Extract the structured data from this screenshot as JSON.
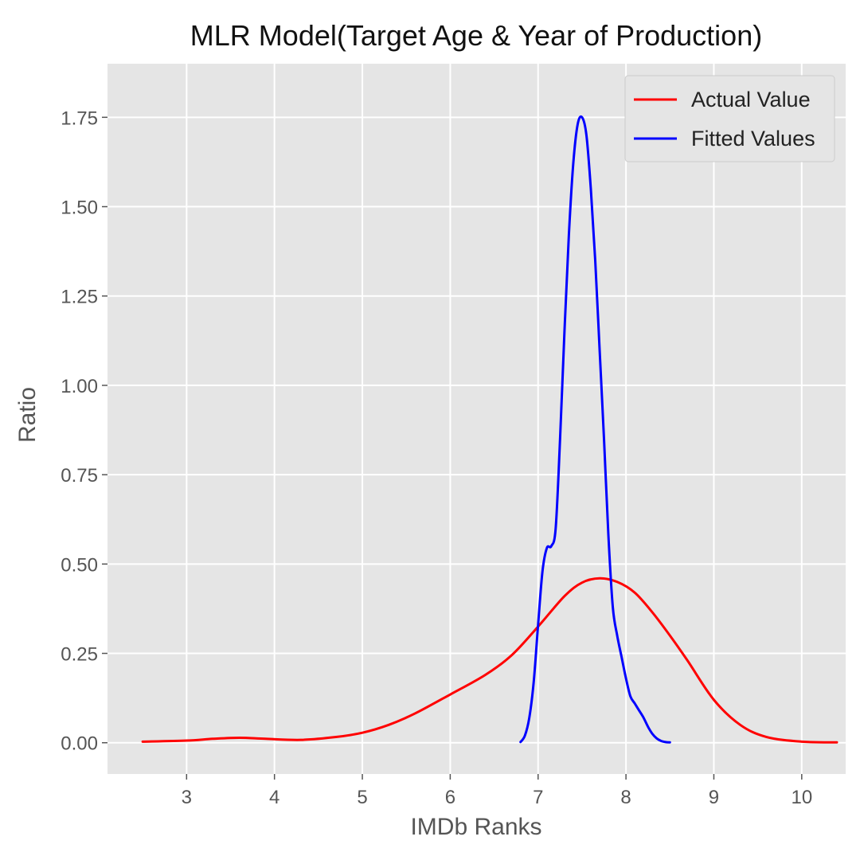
{
  "chart_data": {
    "type": "line",
    "title": "MLR Model(Target Age & Year of Production)",
    "xlabel": "IMDb Ranks",
    "ylabel": "Ratio",
    "xlim": [
      2.1,
      10.5
    ],
    "ylim": [
      -0.0875,
      1.9
    ],
    "xticks": [
      3,
      4,
      5,
      6,
      7,
      8,
      9,
      10
    ],
    "yticks": [
      0.0,
      0.25,
      0.5,
      0.75,
      1.0,
      1.25,
      1.5,
      1.75
    ],
    "ytick_labels": [
      "0.00",
      "0.25",
      "0.50",
      "0.75",
      "1.00",
      "1.25",
      "1.50",
      "1.75"
    ],
    "grid": true,
    "legend_position": "top-right",
    "series": [
      {
        "name": "Actual Value",
        "color": "#ff0000",
        "x": [
          2.5,
          3.0,
          3.3,
          3.6,
          3.9,
          4.3,
          4.7,
          5.0,
          5.3,
          5.6,
          6.0,
          6.4,
          6.7,
          7.0,
          7.3,
          7.5,
          7.7,
          7.9,
          8.1,
          8.3,
          8.5,
          8.7,
          9.0,
          9.3,
          9.6,
          10.0,
          10.4
        ],
        "y": [
          0.003,
          0.006,
          0.011,
          0.014,
          0.011,
          0.008,
          0.016,
          0.028,
          0.05,
          0.082,
          0.135,
          0.19,
          0.245,
          0.325,
          0.41,
          0.448,
          0.46,
          0.45,
          0.42,
          0.365,
          0.3,
          0.23,
          0.12,
          0.05,
          0.016,
          0.003,
          0.001
        ]
      },
      {
        "name": "Fitted Values",
        "color": "#0000ff",
        "x": [
          6.8,
          6.85,
          6.9,
          6.95,
          7.0,
          7.05,
          7.1,
          7.15,
          7.2,
          7.25,
          7.3,
          7.35,
          7.4,
          7.45,
          7.5,
          7.55,
          7.6,
          7.65,
          7.7,
          7.75,
          7.8,
          7.85,
          7.9,
          7.95,
          8.0,
          8.05,
          8.1,
          8.15,
          8.2,
          8.25,
          8.3,
          8.35,
          8.4,
          8.45,
          8.5
        ],
        "y": [
          0.002,
          0.02,
          0.07,
          0.17,
          0.33,
          0.48,
          0.545,
          0.55,
          0.6,
          0.85,
          1.15,
          1.42,
          1.62,
          1.73,
          1.75,
          1.7,
          1.55,
          1.35,
          1.1,
          0.85,
          0.58,
          0.38,
          0.3,
          0.24,
          0.18,
          0.13,
          0.11,
          0.09,
          0.07,
          0.045,
          0.025,
          0.012,
          0.005,
          0.002,
          0.001
        ]
      }
    ]
  }
}
